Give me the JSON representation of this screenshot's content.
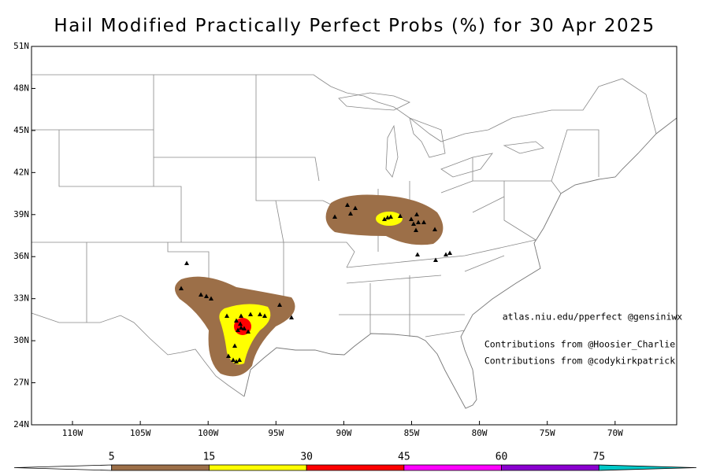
{
  "title": "Hail Modified Practically Perfect Probs (%) for 30 Apr 2025",
  "lat_labels": [
    "51N",
    "48N",
    "45N",
    "42N",
    "39N",
    "36N",
    "33N",
    "30N",
    "27N",
    "24N"
  ],
  "lon_labels": [
    "110W",
    "105W",
    "100W",
    "95W",
    "90W",
    "85W",
    "80W",
    "75W",
    "70W"
  ],
  "credits": [
    "atlas.niu.edu/pperfect @gensiniwx",
    "Contributions from @Hoosier_Charlie",
    "Contributions from @codykirkpatrick"
  ],
  "colorbar": {
    "levels": [
      5,
      15,
      30,
      45,
      60,
      75
    ],
    "colors": [
      "#ffffff",
      "#9c6f48",
      "#ffff00",
      "#ff0000",
      "#ff00ff",
      "#8a00d0",
      "#00c8c8"
    ]
  }
}
